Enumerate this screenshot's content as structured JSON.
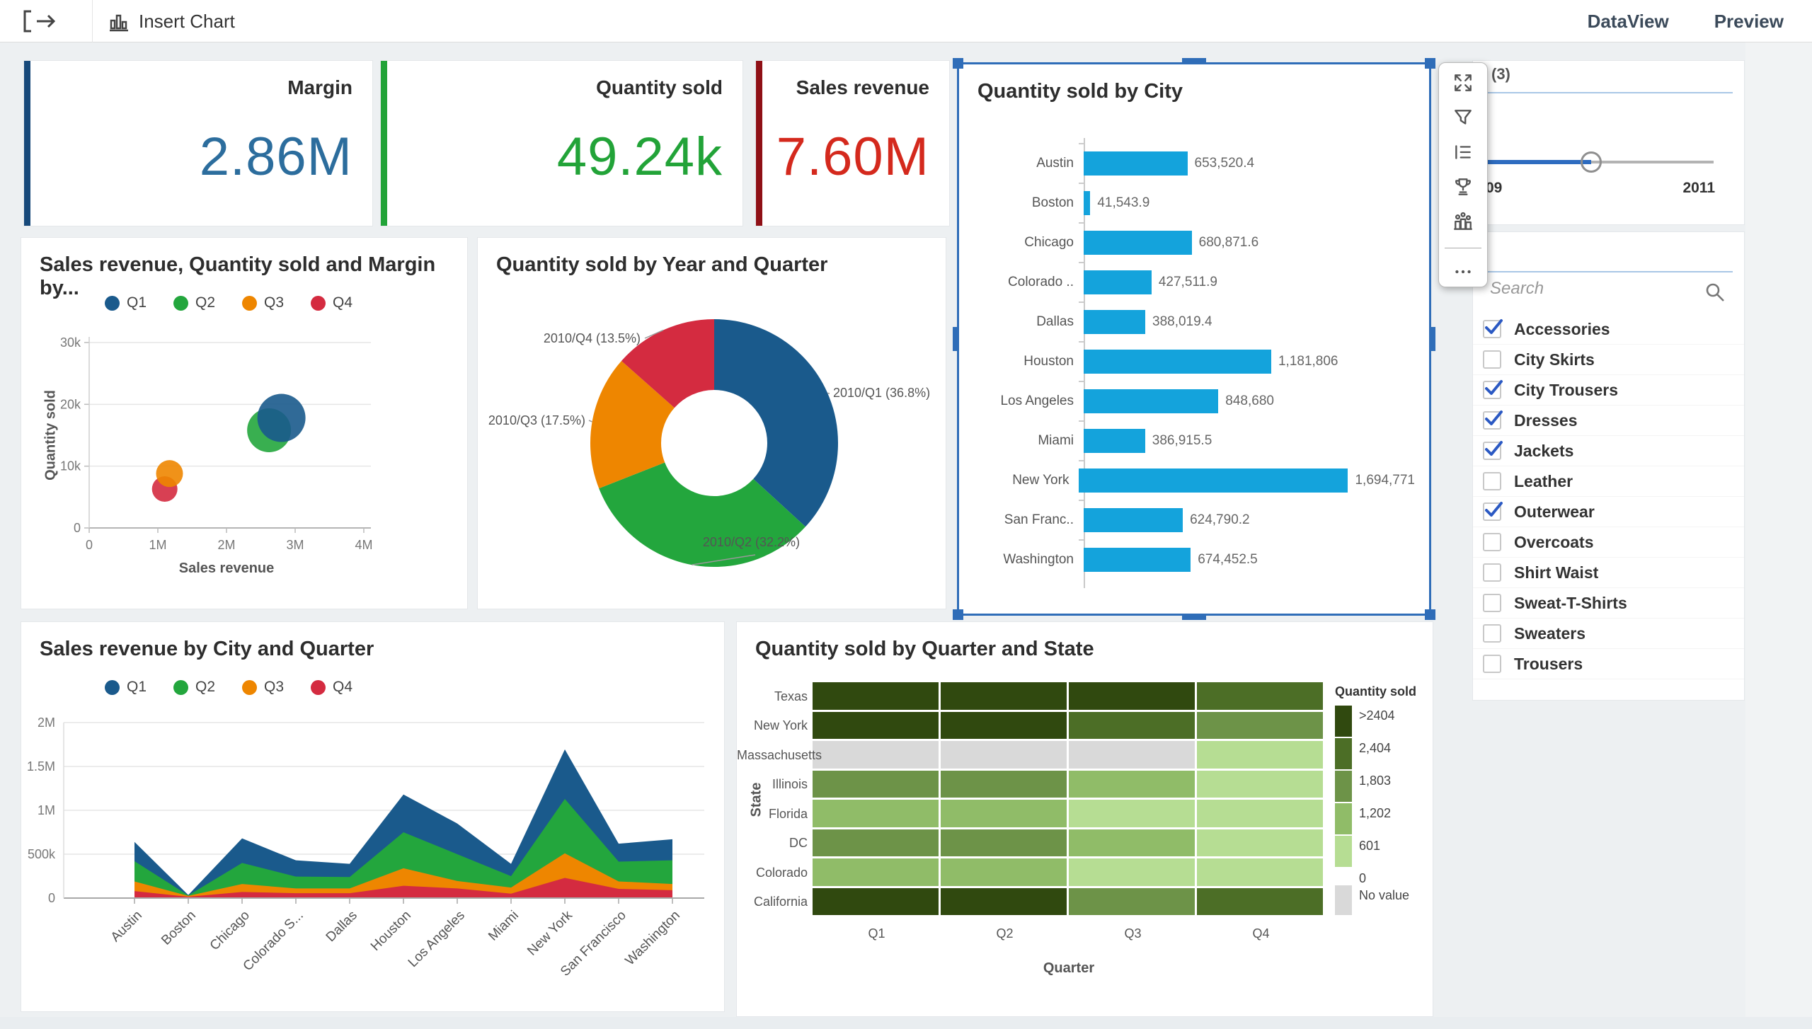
{
  "toolbar": {
    "insert_chart": "Insert Chart",
    "dataview": "DataView",
    "preview": "Preview"
  },
  "kpis": [
    {
      "label": "Margin",
      "value": "2.86M",
      "accent_color": "#17497a",
      "value_color": "#2c6d9d"
    },
    {
      "label": "Quantity sold",
      "value": "49.24k",
      "accent_color": "#22a338",
      "value_color": "#22a338"
    },
    {
      "label": "Sales revenue",
      "value": "7.60M",
      "accent_color": "#8f1016",
      "value_color": "#d4291d"
    }
  ],
  "palette": {
    "Q1": "#1a5a8c",
    "Q2": "#23a63d",
    "Q3": "#ee8600",
    "Q4": "#d42b40",
    "bar_blue": "#14a3dc"
  },
  "chart_data": [
    {
      "type": "bar",
      "title": "Quantity sold by City",
      "orientation": "horizontal",
      "categories": [
        "Austin",
        "Boston",
        "Chicago",
        "Colorado ..",
        "Dallas",
        "Houston",
        "Los Angeles",
        "Miami",
        "New York",
        "San Franc..",
        "Washington"
      ],
      "values": [
        653520.4,
        41543.9,
        680871.6,
        427511.9,
        388019.4,
        1181806,
        848680,
        386915.5,
        1694771,
        624790.2,
        674452.5
      ],
      "value_labels": [
        "653,520.4",
        "41,543.9",
        "680,871.6",
        "427,511.9",
        "388,019.4",
        "1,181,806",
        "848,680",
        "386,915.5",
        "1,694,771",
        "624,790.2",
        "674,452.5"
      ],
      "bar_color": "#14a3dc"
    },
    {
      "type": "scatter",
      "title": "Sales revenue, Quantity sold and Margin by...",
      "xlabel": "Sales revenue",
      "ylabel": "Quantity sold",
      "xlim": [
        0,
        4000000
      ],
      "ylim": [
        0,
        30000
      ],
      "xticks": [
        "0",
        "1M",
        "2M",
        "3M",
        "4M"
      ],
      "yticks": [
        "0",
        "10k",
        "20k",
        "30k"
      ],
      "legend": [
        "Q1",
        "Q2",
        "Q3",
        "Q4"
      ],
      "series": [
        {
          "name": "Q1",
          "x": 2800000,
          "y": 17800,
          "r": 34
        },
        {
          "name": "Q2",
          "x": 2620000,
          "y": 15800,
          "r": 31
        },
        {
          "name": "Q3",
          "x": 1170000,
          "y": 8800,
          "r": 19
        },
        {
          "name": "Q4",
          "x": 1100000,
          "y": 6300,
          "r": 18
        }
      ]
    },
    {
      "type": "pie",
      "title": "Quantity sold by Year and Quarter",
      "donut": true,
      "slices": [
        {
          "label": "2010/Q1 (36.8%)",
          "name": "Q1",
          "value": 36.8
        },
        {
          "label": "2010/Q2 (32.2%)",
          "name": "Q2",
          "value": 32.2
        },
        {
          "label": "2010/Q3 (17.5%)",
          "name": "Q3",
          "value": 17.5
        },
        {
          "label": "2010/Q4 (13.5%)",
          "name": "Q4",
          "value": 13.5
        }
      ]
    },
    {
      "type": "area",
      "title": "Sales revenue by City and Quarter",
      "stacked": true,
      "categories": [
        "Austin",
        "Boston",
        "Chicago",
        "Colorado S...",
        "Dallas",
        "Houston",
        "Los Angeles",
        "Miami",
        "New York",
        "San Francisco",
        "Washington"
      ],
      "yticks": [
        "0",
        "500k",
        "1M",
        "1.5M",
        "2M"
      ],
      "ylim": [
        0,
        2000000
      ],
      "legend": [
        "Q1",
        "Q2",
        "Q3",
        "Q4"
      ],
      "series": [
        {
          "name": "Q1",
          "values": [
            220000,
            5000,
            280000,
            185000,
            150000,
            430000,
            350000,
            140000,
            565000,
            205000,
            240000
          ]
        },
        {
          "name": "Q2",
          "values": [
            230000,
            5000,
            240000,
            135000,
            130000,
            410000,
            305000,
            130000,
            620000,
            225000,
            270000
          ]
        },
        {
          "name": "Q3",
          "values": [
            110000,
            10000,
            90000,
            55000,
            55000,
            200000,
            85000,
            70000,
            280000,
            85000,
            70000
          ]
        },
        {
          "name": "Q4",
          "values": [
            80000,
            15000,
            70000,
            55000,
            55000,
            140000,
            110000,
            50000,
            230000,
            105000,
            90000
          ]
        }
      ]
    },
    {
      "type": "heatmap",
      "title": "Quantity sold by Quarter and State",
      "xlabel": "Quarter",
      "ylabel": "State",
      "rows": [
        "Texas",
        "New York",
        "Massachusetts",
        "Illinois",
        "Florida",
        "DC",
        "Colorado",
        "California"
      ],
      "cols": [
        "Q1",
        "Q2",
        "Q3",
        "Q4"
      ],
      "levels": [
        [
          5,
          5,
          5,
          4
        ],
        [
          5,
          5,
          4,
          3
        ],
        [
          0,
          0,
          0,
          1
        ],
        [
          3,
          3,
          2,
          1
        ],
        [
          2,
          2,
          1,
          1
        ],
        [
          3,
          3,
          2,
          1
        ],
        [
          2,
          2,
          1,
          1
        ],
        [
          5,
          5,
          3,
          4
        ]
      ],
      "level_colors": {
        "0": "#d9d9d9",
        "1": "#b6dd93",
        "2": "#90bc68",
        "3": "#6d9348",
        "4": "#4c6e26",
        "5": "#30490f"
      },
      "legend_title": "Quantity sold",
      "legend_stops": [
        ">2404",
        "2,404",
        "1,803",
        "1,202",
        "601",
        "0"
      ],
      "no_value_label": "No value"
    }
  ],
  "side_panel": {
    "year_facet": {
      "header": "(3)",
      "range_start_label": "09",
      "range_end_label": "2011",
      "handle_percent": 44
    },
    "product_facet": {
      "search_placeholder": "Search",
      "items": [
        {
          "label": "Accessories",
          "checked": true
        },
        {
          "label": "City Skirts",
          "checked": false
        },
        {
          "label": "City Trousers",
          "checked": true
        },
        {
          "label": "Dresses",
          "checked": true
        },
        {
          "label": "Jackets",
          "checked": true
        },
        {
          "label": "Leather",
          "checked": false
        },
        {
          "label": "Outerwear",
          "checked": true
        },
        {
          "label": "Overcoats",
          "checked": false
        },
        {
          "label": "Shirt Waist",
          "checked": false
        },
        {
          "label": "Sweat-T-Shirts",
          "checked": false
        },
        {
          "label": "Sweaters",
          "checked": false
        },
        {
          "label": "Trousers",
          "checked": false
        }
      ]
    }
  },
  "selection_toolbar": {
    "icons": [
      "maximize",
      "filter",
      "sort",
      "ranking",
      "drill-down",
      "more-options"
    ]
  }
}
